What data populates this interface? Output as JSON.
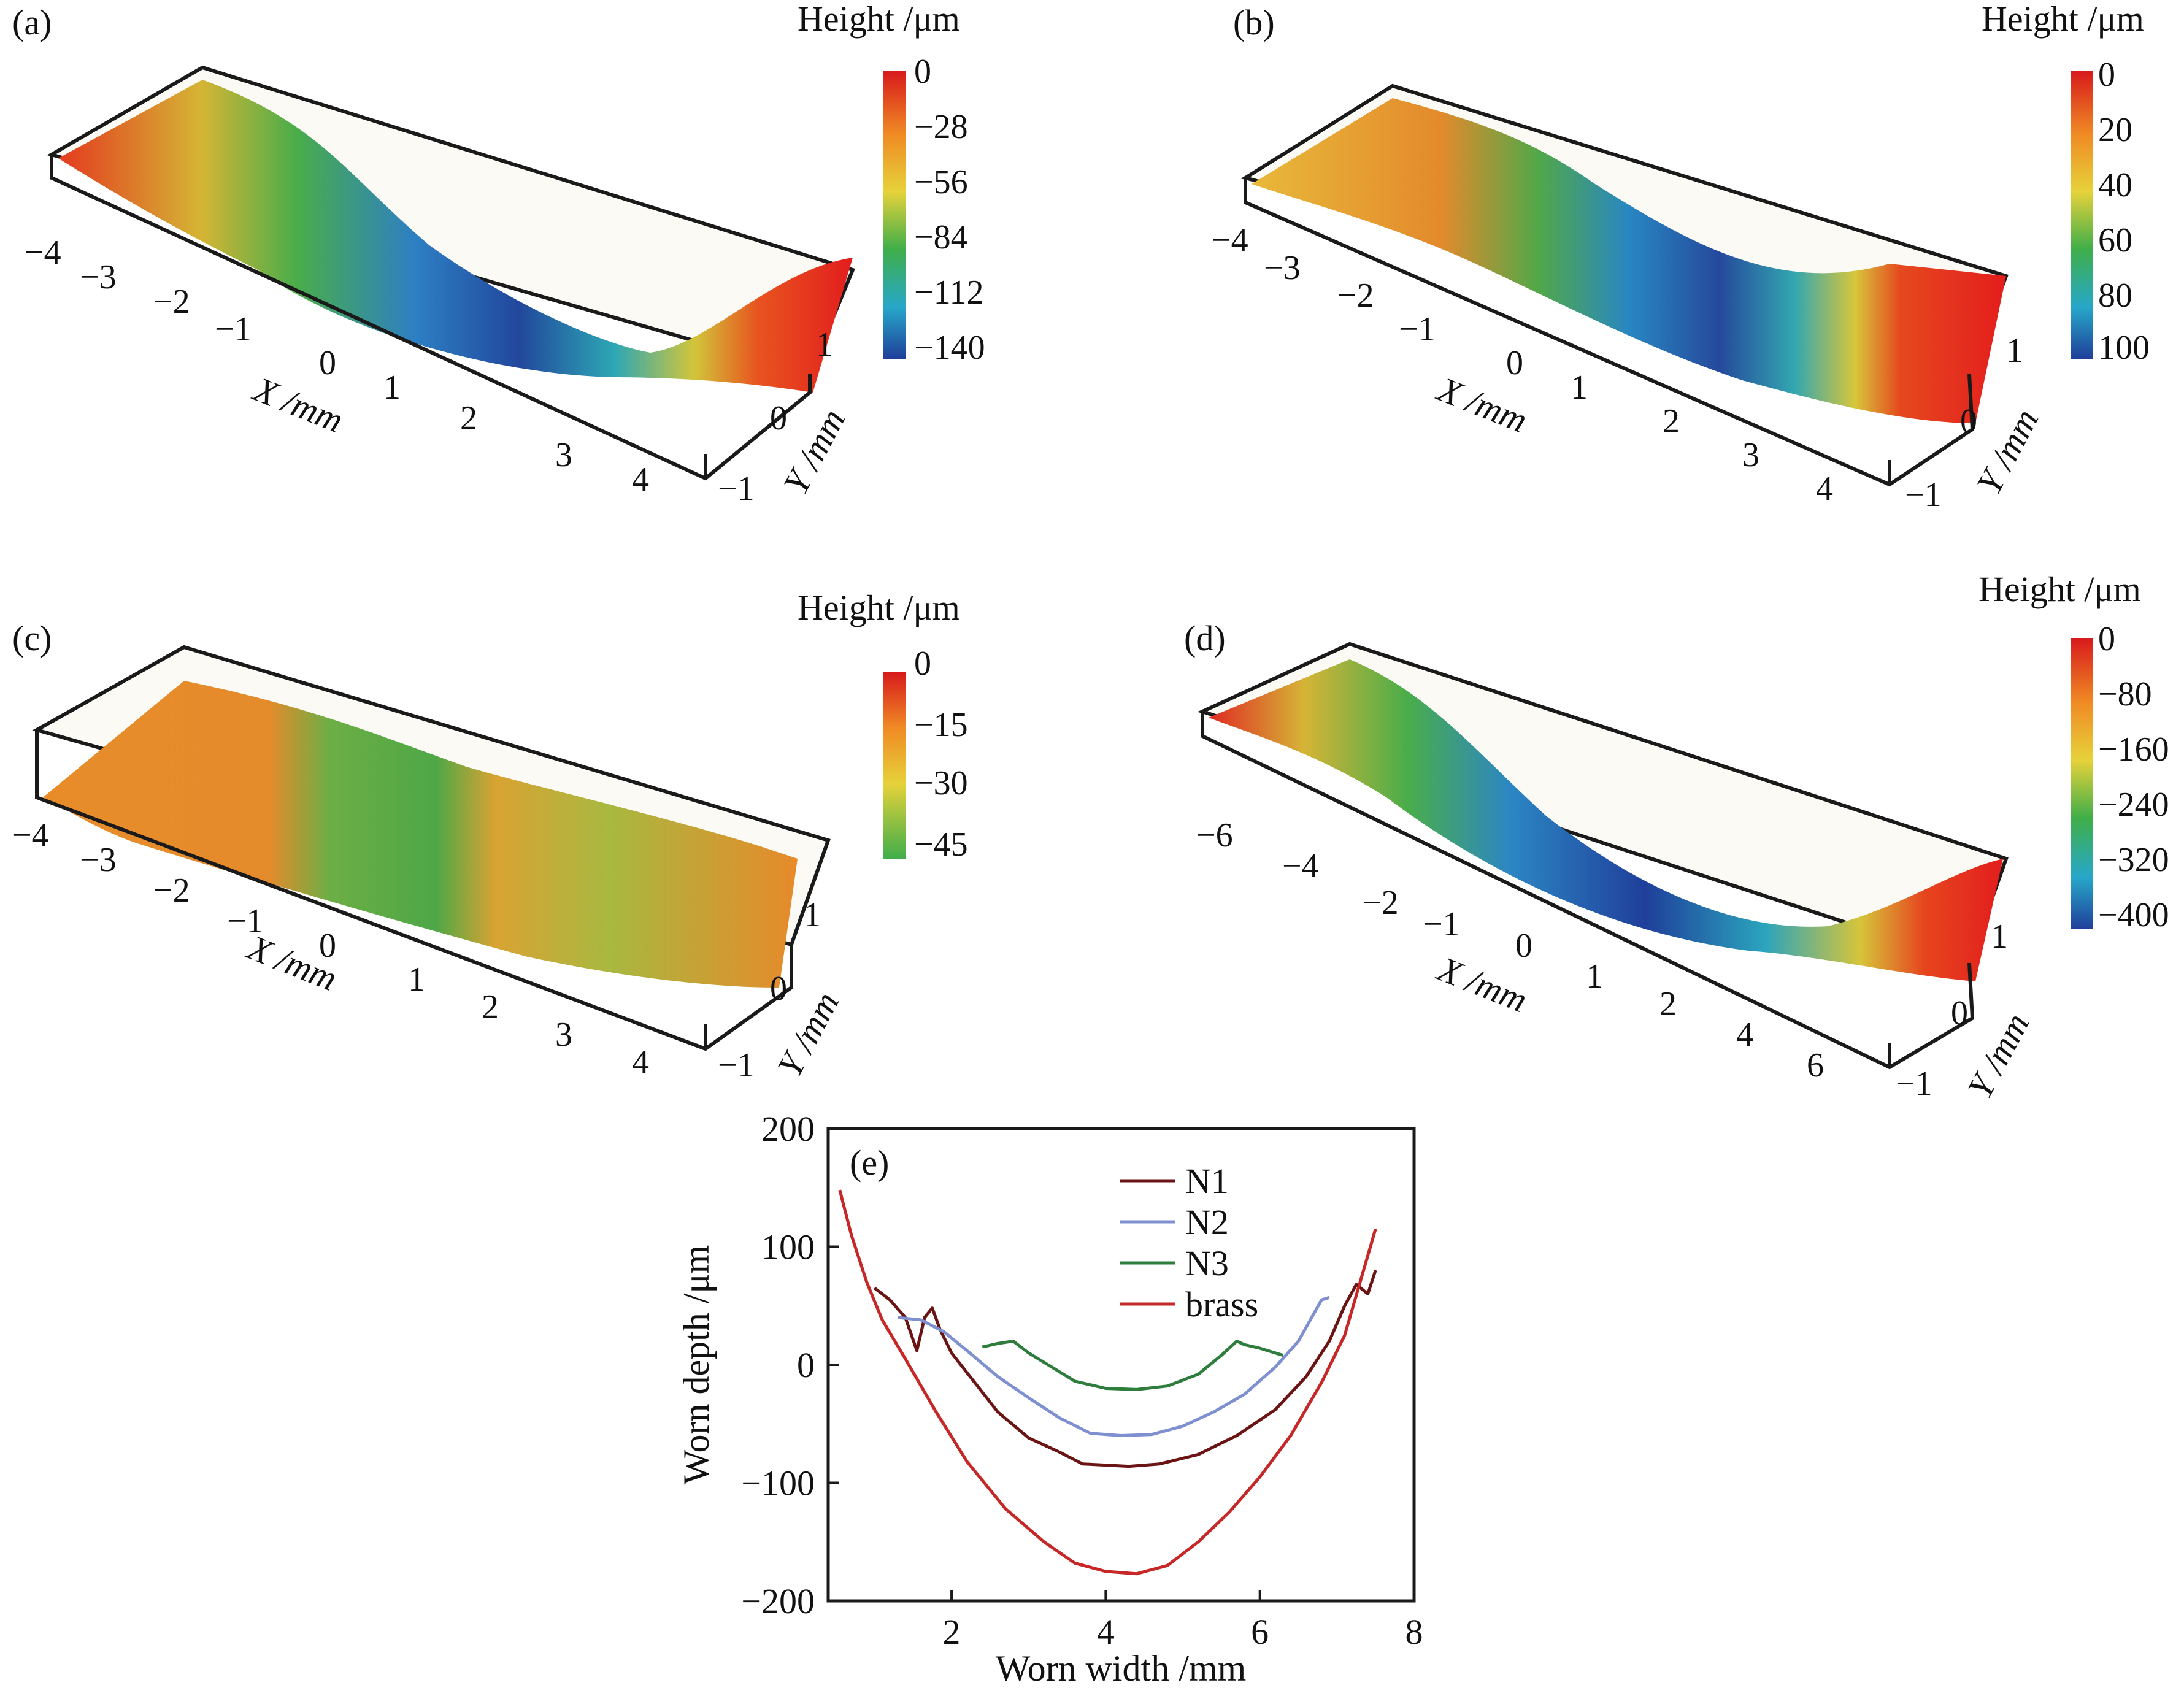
{
  "panels": [
    {
      "id": "a",
      "label": "(a)",
      "colorbar_title": "Height /μm",
      "colorbar_ticks": [
        "0",
        "−28",
        "−56",
        "−84",
        "−112",
        "−140"
      ],
      "x_axis_title": "X /mm",
      "y_axis_title": "Y /mm",
      "x_ticks": [
        "−4",
        "−3",
        "−2",
        "−1",
        "0",
        "1",
        "2",
        "3",
        "4"
      ],
      "y_ticks": [
        "1",
        "0",
        "−1"
      ]
    },
    {
      "id": "b",
      "label": "(b)",
      "colorbar_title": "Height /μm",
      "colorbar_ticks": [
        "0",
        "20",
        "40",
        "60",
        "80",
        "100"
      ],
      "x_axis_title": "X /mm",
      "y_axis_title": "Y /mm",
      "x_ticks": [
        "−4",
        "−3",
        "−2",
        "−1",
        "0",
        "1",
        "2",
        "3",
        "4"
      ],
      "y_ticks": [
        "1",
        "0",
        "−1"
      ]
    },
    {
      "id": "c",
      "label": "(c)",
      "colorbar_title": "Height /μm",
      "colorbar_ticks": [
        "0",
        "−15",
        "−30",
        "−45"
      ],
      "x_axis_title": "X /mm",
      "y_axis_title": "Y /mm",
      "x_ticks": [
        "−4",
        "−3",
        "−2",
        "−1",
        "0",
        "1",
        "2",
        "3",
        "4"
      ],
      "y_ticks": [
        "1",
        "0",
        "−1"
      ]
    },
    {
      "id": "d",
      "label": "(d)",
      "colorbar_title": "Height /μm",
      "colorbar_ticks": [
        "0",
        "−80",
        "−160",
        "−240",
        "−320",
        "−400"
      ],
      "x_axis_title": "X /mm",
      "y_axis_title": "Y /mm",
      "x_ticks": [
        "−6",
        "−4",
        "−2",
        "−1",
        "0",
        "1",
        "2",
        "4",
        "6"
      ],
      "y_ticks": [
        "1",
        "0",
        "−1"
      ]
    }
  ],
  "colors": {
    "red": "#e2231a",
    "orange": "#f08a24",
    "yellow": "#e6d23a",
    "green": "#3fae49",
    "cyan": "#27a8c9",
    "blue": "#1f3f9a",
    "frame": "#1a1a1a"
  },
  "chart_data": {
    "type": "line",
    "panel_label": "(e)",
    "xlabel": "Worn width /mm",
    "ylabel": "Worn depth /μm",
    "xlim": [
      0.4,
      8
    ],
    "ylim": [
      -200,
      200
    ],
    "x_ticks": [
      2,
      4,
      6,
      8
    ],
    "y_ticks": [
      200,
      100,
      0,
      -100,
      -200
    ],
    "legend_position": "top-center",
    "series": [
      {
        "name": "N1",
        "color": "#6b1414",
        "x": [
          1.0,
          1.2,
          1.4,
          1.55,
          1.65,
          1.75,
          1.85,
          2.0,
          2.3,
          2.6,
          3.0,
          3.4,
          3.7,
          4.0,
          4.3,
          4.7,
          5.2,
          5.7,
          6.2,
          6.6,
          6.9,
          7.1,
          7.25,
          7.4,
          7.5
        ],
        "values": [
          65,
          55,
          40,
          12,
          40,
          48,
          30,
          10,
          -15,
          -40,
          -62,
          -74,
          -84,
          -85,
          -86,
          -84,
          -76,
          -60,
          -38,
          -10,
          20,
          50,
          68,
          60,
          80
        ]
      },
      {
        "name": "N2",
        "color": "#7f90d0",
        "x": [
          1.3,
          1.6,
          1.9,
          2.2,
          2.6,
          3.0,
          3.4,
          3.8,
          4.2,
          4.6,
          5.0,
          5.4,
          5.8,
          6.2,
          6.5,
          6.8,
          6.9
        ],
        "values": [
          40,
          38,
          28,
          12,
          -10,
          -28,
          -45,
          -58,
          -60,
          -59,
          -52,
          -40,
          -25,
          -2,
          20,
          55,
          57
        ]
      },
      {
        "name": "N3",
        "color": "#2e7d3c",
        "x": [
          2.4,
          2.6,
          2.8,
          3.0,
          3.3,
          3.6,
          4.0,
          4.4,
          4.8,
          5.2,
          5.5,
          5.7,
          5.8,
          6.0,
          6.3
        ],
        "values": [
          15,
          18,
          20,
          10,
          -2,
          -14,
          -20,
          -21,
          -18,
          -8,
          8,
          20,
          17,
          14,
          8
        ]
      },
      {
        "name": "brass",
        "color": "#c62828",
        "x": [
          0.55,
          0.7,
          0.9,
          1.1,
          1.4,
          1.8,
          2.2,
          2.7,
          3.2,
          3.6,
          4.0,
          4.4,
          4.8,
          5.2,
          5.6,
          6.0,
          6.4,
          6.8,
          7.1,
          7.3,
          7.5
        ],
        "values": [
          148,
          110,
          70,
          38,
          5,
          -40,
          -82,
          -122,
          -150,
          -168,
          -175,
          -177,
          -170,
          -150,
          -125,
          -95,
          -60,
          -15,
          25,
          70,
          115
        ]
      }
    ]
  }
}
